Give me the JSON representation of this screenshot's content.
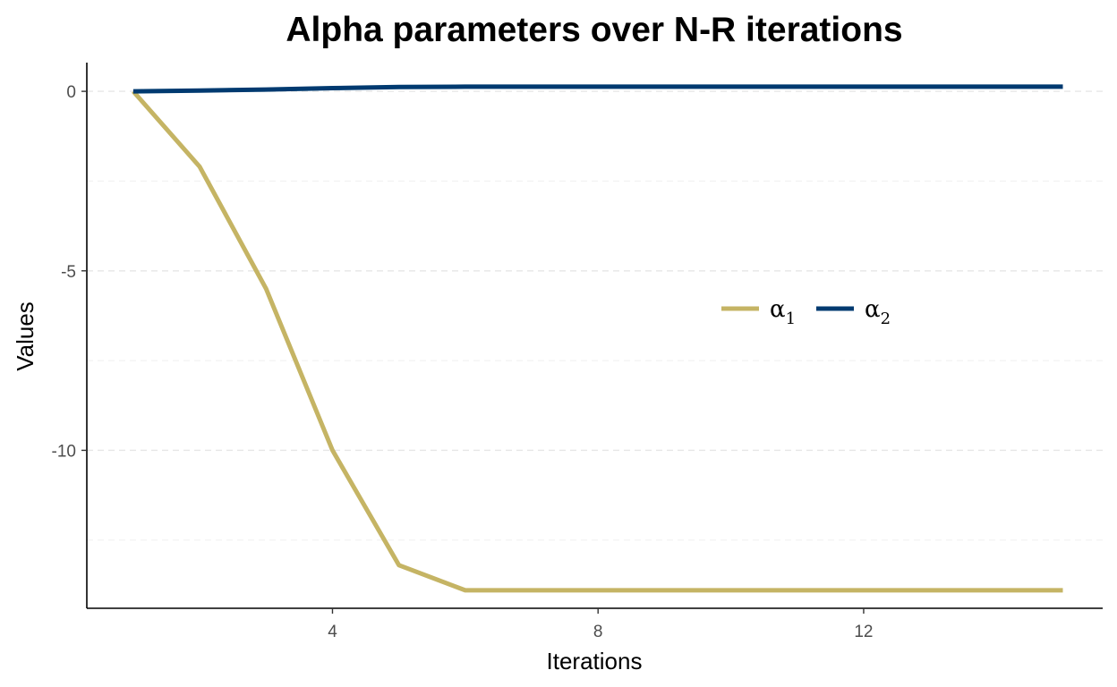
{
  "chart_data": {
    "type": "line",
    "title": "Alpha parameters over N-R iterations",
    "xlabel": "Iterations",
    "ylabel": "Values",
    "xlim": [
      0.3,
      15.6
    ],
    "ylim": [
      -14.4,
      0.8
    ],
    "x_ticks": [
      4,
      8,
      12
    ],
    "y_ticks": [
      0,
      -5,
      -10
    ],
    "x_tick_labels": [
      "4",
      "8",
      "12"
    ],
    "y_tick_labels": [
      "0",
      "-5",
      "-10"
    ],
    "grid": "horizontal dashed",
    "legend_position": "right-center",
    "series": [
      {
        "name": "α1",
        "label_base": "α",
        "label_sub": "1",
        "color": "#C5B464",
        "x": [
          1,
          2,
          3,
          4,
          5,
          6,
          7,
          8,
          9,
          10,
          11,
          12,
          13,
          14,
          15
        ],
        "values": [
          0,
          -2.1,
          -5.5,
          -10.0,
          -13.2,
          -13.9,
          -13.9,
          -13.9,
          -13.9,
          -13.9,
          -13.9,
          -13.9,
          -13.9,
          -13.9,
          -13.9
        ]
      },
      {
        "name": "α2",
        "label_base": "α",
        "label_sub": "2",
        "color": "#003A70",
        "x": [
          1,
          2,
          3,
          4,
          5,
          6,
          7,
          8,
          9,
          10,
          11,
          12,
          13,
          14,
          15
        ],
        "values": [
          0,
          0.02,
          0.05,
          0.09,
          0.12,
          0.13,
          0.13,
          0.13,
          0.13,
          0.13,
          0.13,
          0.13,
          0.13,
          0.13,
          0.13
        ]
      }
    ]
  }
}
